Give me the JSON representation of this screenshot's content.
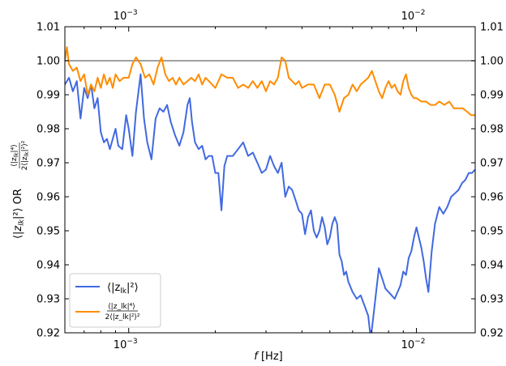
{
  "chart_data": {
    "type": "line",
    "title": "",
    "xlabel": "f [Hz]",
    "ylabel_main": "⟨|z",
    "ylabel_sub": "lk",
    "ylabel_rest": "|²⟩  OR",
    "ylabel_frac_num": "⟨|z_lk|⁴⟩",
    "ylabel_frac_den": "2⟨|z_lk|²⟩²",
    "x_scale": "log",
    "xlim": [
      0.0006,
      0.016
    ],
    "ylim": [
      0.92,
      1.01
    ],
    "grid": false,
    "legend_position": "lower-left",
    "reference_line": {
      "y": 1.0,
      "color": "#808080"
    },
    "y_ticks": [
      "0.92",
      "0.93",
      "0.94",
      "0.95",
      "0.96",
      "0.97",
      "0.98",
      "0.99",
      "1.00",
      "1.01"
    ],
    "y_tick_values": [
      0.92,
      0.93,
      0.94,
      0.95,
      0.96,
      0.97,
      0.98,
      0.99,
      1.0,
      1.01
    ],
    "x_major_ticks": [
      {
        "value": 0.001,
        "base": "10",
        "exp": "−3"
      },
      {
        "value": 0.01,
        "base": "10",
        "exp": "−2"
      }
    ],
    "x_minor_ticks": [
      0.0006,
      0.0007,
      0.0008,
      0.0009,
      0.002,
      0.003,
      0.004,
      0.005,
      0.006,
      0.007,
      0.008,
      0.009
    ],
    "series": [
      {
        "name": "⟨|z_lk|²⟩",
        "legend_main": "⟨|z",
        "legend_sub": "lk",
        "legend_rest": "|²⟩",
        "color": "#4169e1",
        "points": [
          [
            0.0006,
            0.993
          ],
          [
            0.00062,
            0.995
          ],
          [
            0.00064,
            0.991
          ],
          [
            0.00066,
            0.994
          ],
          [
            0.00068,
            0.983
          ],
          [
            0.0007,
            0.992
          ],
          [
            0.00072,
            0.989
          ],
          [
            0.00074,
            0.993
          ],
          [
            0.00076,
            0.986
          ],
          [
            0.00078,
            0.989
          ],
          [
            0.0008,
            0.979
          ],
          [
            0.00082,
            0.976
          ],
          [
            0.00084,
            0.977
          ],
          [
            0.00086,
            0.974
          ],
          [
            0.00088,
            0.977
          ],
          [
            0.0009,
            0.98
          ],
          [
            0.00092,
            0.975
          ],
          [
            0.00095,
            0.974
          ],
          [
            0.00098,
            0.984
          ],
          [
            0.001,
            0.98
          ],
          [
            0.00103,
            0.972
          ],
          [
            0.00106,
            0.985
          ],
          [
            0.0011,
            0.996
          ],
          [
            0.00113,
            0.983
          ],
          [
            0.00116,
            0.976
          ],
          [
            0.0012,
            0.971
          ],
          [
            0.00124,
            0.983
          ],
          [
            0.00128,
            0.986
          ],
          [
            0.00132,
            0.985
          ],
          [
            0.00136,
            0.987
          ],
          [
            0.0014,
            0.982
          ],
          [
            0.00145,
            0.978
          ],
          [
            0.0015,
            0.975
          ],
          [
            0.00155,
            0.979
          ],
          [
            0.0016,
            0.987
          ],
          [
            0.00163,
            0.989
          ],
          [
            0.00166,
            0.982
          ],
          [
            0.0017,
            0.976
          ],
          [
            0.00175,
            0.974
          ],
          [
            0.0018,
            0.975
          ],
          [
            0.00185,
            0.971
          ],
          [
            0.0019,
            0.972
          ],
          [
            0.00195,
            0.972
          ],
          [
            0.002,
            0.967
          ],
          [
            0.00205,
            0.967
          ],
          [
            0.0021,
            0.956
          ],
          [
            0.00215,
            0.969
          ],
          [
            0.0022,
            0.972
          ],
          [
            0.0023,
            0.972
          ],
          [
            0.0024,
            0.974
          ],
          [
            0.0025,
            0.976
          ],
          [
            0.0026,
            0.972
          ],
          [
            0.0027,
            0.973
          ],
          [
            0.0028,
            0.97
          ],
          [
            0.0029,
            0.967
          ],
          [
            0.003,
            0.968
          ],
          [
            0.0031,
            0.972
          ],
          [
            0.0032,
            0.969
          ],
          [
            0.0033,
            0.967
          ],
          [
            0.0034,
            0.97
          ],
          [
            0.0035,
            0.96
          ],
          [
            0.0036,
            0.963
          ],
          [
            0.0037,
            0.962
          ],
          [
            0.0038,
            0.959
          ],
          [
            0.0039,
            0.956
          ],
          [
            0.004,
            0.955
          ],
          [
            0.0041,
            0.949
          ],
          [
            0.0042,
            0.954
          ],
          [
            0.0043,
            0.956
          ],
          [
            0.0044,
            0.95
          ],
          [
            0.0045,
            0.948
          ],
          [
            0.0046,
            0.95
          ],
          [
            0.0047,
            0.954
          ],
          [
            0.0048,
            0.951
          ],
          [
            0.0049,
            0.946
          ],
          [
            0.005,
            0.948
          ],
          [
            0.0051,
            0.952
          ],
          [
            0.0052,
            0.954
          ],
          [
            0.0053,
            0.952
          ],
          [
            0.0054,
            0.943
          ],
          [
            0.0055,
            0.941
          ],
          [
            0.0056,
            0.937
          ],
          [
            0.0057,
            0.938
          ],
          [
            0.0058,
            0.935
          ],
          [
            0.006,
            0.932
          ],
          [
            0.0062,
            0.93
          ],
          [
            0.0064,
            0.931
          ],
          [
            0.0066,
            0.928
          ],
          [
            0.0068,
            0.925
          ],
          [
            0.0069,
            0.92
          ],
          [
            0.007,
            0.921
          ],
          [
            0.0072,
            0.93
          ],
          [
            0.0074,
            0.939
          ],
          [
            0.0076,
            0.936
          ],
          [
            0.0078,
            0.933
          ],
          [
            0.008,
            0.932
          ],
          [
            0.0082,
            0.931
          ],
          [
            0.0084,
            0.93
          ],
          [
            0.0086,
            0.932
          ],
          [
            0.0088,
            0.934
          ],
          [
            0.009,
            0.938
          ],
          [
            0.0092,
            0.937
          ],
          [
            0.0094,
            0.942
          ],
          [
            0.0096,
            0.944
          ],
          [
            0.0098,
            0.948
          ],
          [
            0.01,
            0.951
          ],
          [
            0.0102,
            0.948
          ],
          [
            0.0104,
            0.945
          ],
          [
            0.0106,
            0.941
          ],
          [
            0.0108,
            0.936
          ],
          [
            0.011,
            0.932
          ],
          [
            0.0113,
            0.944
          ],
          [
            0.0116,
            0.952
          ],
          [
            0.012,
            0.957
          ],
          [
            0.0124,
            0.955
          ],
          [
            0.0128,
            0.957
          ],
          [
            0.0132,
            0.96
          ],
          [
            0.0136,
            0.961
          ],
          [
            0.014,
            0.962
          ],
          [
            0.0144,
            0.964
          ],
          [
            0.0148,
            0.965
          ],
          [
            0.0152,
            0.967
          ],
          [
            0.0156,
            0.967
          ],
          [
            0.016,
            0.968
          ]
        ]
      },
      {
        "name": "⟨|z_lk|⁴⟩ / 2⟨|z_lk|²⟩²",
        "legend_num": "⟨|z_lk|⁴⟩",
        "legend_den": "2⟨|z_lk|²⟩²",
        "color": "#ff8c00",
        "points": [
          [
            0.0006,
            1.0
          ],
          [
            0.00061,
            1.004
          ],
          [
            0.00062,
            0.999
          ],
          [
            0.00064,
            0.997
          ],
          [
            0.00066,
            0.998
          ],
          [
            0.00068,
            0.994
          ],
          [
            0.0007,
            0.996
          ],
          [
            0.00072,
            0.99
          ],
          [
            0.00074,
            0.993
          ],
          [
            0.00076,
            0.991
          ],
          [
            0.00078,
            0.995
          ],
          [
            0.0008,
            0.992
          ],
          [
            0.00082,
            0.996
          ],
          [
            0.00084,
            0.993
          ],
          [
            0.00086,
            0.995
          ],
          [
            0.00088,
            0.992
          ],
          [
            0.0009,
            0.996
          ],
          [
            0.00093,
            0.994
          ],
          [
            0.00096,
            0.995
          ],
          [
            0.001,
            0.995
          ],
          [
            0.00103,
            0.999
          ],
          [
            0.00106,
            1.001
          ],
          [
            0.0011,
            0.999
          ],
          [
            0.00114,
            0.995
          ],
          [
            0.00118,
            0.996
          ],
          [
            0.00122,
            0.993
          ],
          [
            0.00126,
            0.998
          ],
          [
            0.0013,
            1.001
          ],
          [
            0.00134,
            0.996
          ],
          [
            0.00138,
            0.994
          ],
          [
            0.00142,
            0.995
          ],
          [
            0.00146,
            0.993
          ],
          [
            0.0015,
            0.995
          ],
          [
            0.00155,
            0.993
          ],
          [
            0.0016,
            0.994
          ],
          [
            0.00165,
            0.995
          ],
          [
            0.0017,
            0.994
          ],
          [
            0.00175,
            0.996
          ],
          [
            0.0018,
            0.993
          ],
          [
            0.00185,
            0.995
          ],
          [
            0.0019,
            0.994
          ],
          [
            0.002,
            0.992
          ],
          [
            0.0021,
            0.996
          ],
          [
            0.0022,
            0.995
          ],
          [
            0.0023,
            0.995
          ],
          [
            0.0024,
            0.992
          ],
          [
            0.0025,
            0.993
          ],
          [
            0.0026,
            0.992
          ],
          [
            0.0027,
            0.994
          ],
          [
            0.0028,
            0.992
          ],
          [
            0.0029,
            0.994
          ],
          [
            0.003,
            0.991
          ],
          [
            0.0031,
            0.994
          ],
          [
            0.0032,
            0.993
          ],
          [
            0.0033,
            0.995
          ],
          [
            0.0034,
            1.001
          ],
          [
            0.0035,
            1.0
          ],
          [
            0.0036,
            0.995
          ],
          [
            0.0037,
            0.994
          ],
          [
            0.0038,
            0.993
          ],
          [
            0.0039,
            0.994
          ],
          [
            0.004,
            0.992
          ],
          [
            0.0042,
            0.993
          ],
          [
            0.0044,
            0.993
          ],
          [
            0.0046,
            0.989
          ],
          [
            0.0048,
            0.993
          ],
          [
            0.005,
            0.993
          ],
          [
            0.0052,
            0.99
          ],
          [
            0.0054,
            0.985
          ],
          [
            0.0056,
            0.989
          ],
          [
            0.0058,
            0.99
          ],
          [
            0.006,
            0.993
          ],
          [
            0.0062,
            0.991
          ],
          [
            0.0064,
            0.993
          ],
          [
            0.0066,
            0.994
          ],
          [
            0.0068,
            0.995
          ],
          [
            0.007,
            0.997
          ],
          [
            0.0072,
            0.994
          ],
          [
            0.0074,
            0.991
          ],
          [
            0.0076,
            0.989
          ],
          [
            0.0078,
            0.992
          ],
          [
            0.008,
            0.994
          ],
          [
            0.0082,
            0.992
          ],
          [
            0.0084,
            0.993
          ],
          [
            0.0086,
            0.991
          ],
          [
            0.0088,
            0.99
          ],
          [
            0.009,
            0.994
          ],
          [
            0.0092,
            0.996
          ],
          [
            0.0094,
            0.992
          ],
          [
            0.0096,
            0.99
          ],
          [
            0.0098,
            0.989
          ],
          [
            0.01,
            0.989
          ],
          [
            0.0104,
            0.988
          ],
          [
            0.0108,
            0.988
          ],
          [
            0.0112,
            0.987
          ],
          [
            0.0116,
            0.987
          ],
          [
            0.012,
            0.988
          ],
          [
            0.0125,
            0.987
          ],
          [
            0.013,
            0.988
          ],
          [
            0.0135,
            0.986
          ],
          [
            0.014,
            0.986
          ],
          [
            0.0145,
            0.986
          ],
          [
            0.015,
            0.985
          ],
          [
            0.0155,
            0.984
          ],
          [
            0.016,
            0.984
          ]
        ]
      }
    ]
  }
}
